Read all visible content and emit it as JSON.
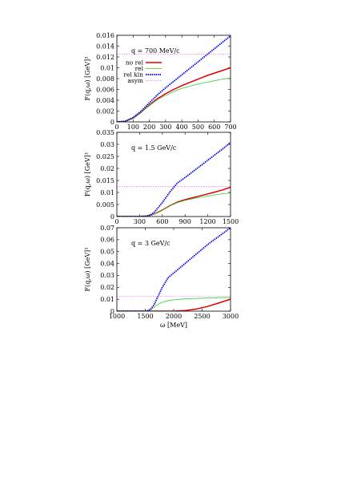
{
  "figure": {
    "xlabel": "ω [MeV]",
    "ylabel": "F(q,ω) [GeV]³"
  },
  "legend": [
    {
      "key": "no_rel",
      "label": "no rel"
    },
    {
      "key": "rel",
      "label": "rel"
    },
    {
      "key": "rel_kin",
      "label": "rel kin"
    },
    {
      "key": "asym",
      "label": "asym"
    }
  ],
  "colors": {
    "no_rel": "#dd0000",
    "rel": "#33cc33",
    "rel_kin": "#0000ee",
    "asym": "#ff66ff"
  },
  "chart_data": [
    {
      "type": "line",
      "annotation": "q = 700 MeV/c",
      "xlim": [
        0,
        700
      ],
      "ylim": [
        0,
        0.016
      ],
      "xticks": [
        0,
        100,
        200,
        300,
        400,
        500,
        600,
        700
      ],
      "yticks": [
        0,
        0.002,
        0.004,
        0.006,
        0.008,
        0.01,
        0.012,
        0.014,
        0.016
      ],
      "xtick_labels": [
        "0",
        "100",
        "200",
        "300",
        "400",
        "500",
        "600",
        "700"
      ],
      "ytick_labels": [
        "0",
        "0.002",
        "0.004",
        "0.006",
        "0.008",
        "0.01",
        "0.012",
        "0.014",
        "0.016"
      ],
      "show_xlabel": false,
      "show_legend": true,
      "series": [
        {
          "key": "no_rel",
          "x": [
            0,
            50,
            100,
            150,
            200,
            250,
            300,
            350,
            400,
            450,
            500,
            550,
            600,
            650,
            700
          ],
          "y": [
            0,
            0.0001,
            0.0007,
            0.0018,
            0.0031,
            0.0043,
            0.0052,
            0.006,
            0.0067,
            0.0073,
            0.0079,
            0.0085,
            0.009,
            0.0095,
            0.01
          ]
        },
        {
          "key": "rel",
          "x": [
            0,
            50,
            100,
            150,
            200,
            250,
            300,
            350,
            400,
            450,
            500,
            550,
            600,
            650,
            700
          ],
          "y": [
            0,
            0.0001,
            0.0007,
            0.0018,
            0.003,
            0.0041,
            0.0049,
            0.0056,
            0.0062,
            0.0066,
            0.007,
            0.0073,
            0.0076,
            0.0079,
            0.0081
          ]
        },
        {
          "key": "rel_kin",
          "x": [
            0,
            50,
            100,
            150,
            200,
            250,
            300,
            350,
            400,
            450,
            500,
            550,
            600,
            650,
            700
          ],
          "y": [
            0,
            0.0001,
            0.0008,
            0.002,
            0.0035,
            0.005,
            0.0063,
            0.0075,
            0.0087,
            0.0099,
            0.0111,
            0.0123,
            0.0135,
            0.0147,
            0.0159
          ]
        },
        {
          "key": "asym",
          "x": [
            0,
            700
          ],
          "y": [
            0.0125,
            0.0125
          ]
        }
      ]
    },
    {
      "type": "line",
      "annotation": "q = 1.5 GeV/c",
      "xlim": [
        0,
        1500
      ],
      "ylim": [
        0,
        0.035
      ],
      "xticks": [
        0,
        300,
        600,
        900,
        1200,
        1500
      ],
      "yticks": [
        0,
        0.005,
        0.01,
        0.015,
        0.02,
        0.025,
        0.03,
        0.035
      ],
      "xtick_labels": [
        "0",
        "300",
        "600",
        "900",
        "1200",
        "1500"
      ],
      "ytick_labels": [
        "0",
        "0.005",
        "0.01",
        "0.015",
        "0.02",
        "0.025",
        "0.03",
        "0.035"
      ],
      "show_xlabel": false,
      "show_legend": false,
      "series": [
        {
          "key": "no_rel",
          "x": [
            0,
            300,
            400,
            450,
            500,
            600,
            700,
            800,
            900,
            1000,
            1100,
            1200,
            1300,
            1400,
            1500
          ],
          "y": [
            0,
            0,
            0.0002,
            0.0006,
            0.0012,
            0.0027,
            0.0045,
            0.006,
            0.007,
            0.0078,
            0.0086,
            0.0094,
            0.0102,
            0.0111,
            0.0122
          ]
        },
        {
          "key": "rel",
          "x": [
            0,
            300,
            400,
            450,
            500,
            600,
            700,
            800,
            900,
            1000,
            1100,
            1200,
            1300,
            1400,
            1500
          ],
          "y": [
            0,
            0,
            0.0002,
            0.0006,
            0.0012,
            0.0027,
            0.0044,
            0.0058,
            0.0067,
            0.0074,
            0.008,
            0.0085,
            0.009,
            0.0095,
            0.0098
          ]
        },
        {
          "key": "rel_kin",
          "x": [
            0,
            300,
            400,
            450,
            500,
            600,
            700,
            800,
            900,
            1000,
            1100,
            1200,
            1300,
            1400,
            1500
          ],
          "y": [
            0,
            0,
            0.0002,
            0.0008,
            0.002,
            0.0058,
            0.0102,
            0.014,
            0.0162,
            0.0186,
            0.021,
            0.0234,
            0.0258,
            0.0282,
            0.0308
          ]
        },
        {
          "key": "asym",
          "x": [
            0,
            1500
          ],
          "y": [
            0.0125,
            0.0125
          ]
        }
      ]
    },
    {
      "type": "line",
      "annotation": "q = 3 GeV/c",
      "xlim": [
        1000,
        3000
      ],
      "ylim": [
        0,
        0.07
      ],
      "xticks": [
        1000,
        1500,
        2000,
        2500,
        3000
      ],
      "yticks": [
        0,
        0.01,
        0.02,
        0.03,
        0.04,
        0.05,
        0.06,
        0.07
      ],
      "xtick_labels": [
        "1000",
        "1500",
        "2000",
        "2500",
        "3000"
      ],
      "ytick_labels": [
        "0",
        "0.01",
        "0.02",
        "0.03",
        "0.04",
        "0.05",
        "0.06",
        "0.07"
      ],
      "show_xlabel": true,
      "show_legend": false,
      "series": [
        {
          "key": "no_rel",
          "x": [
            1000,
            1500,
            2000,
            2200,
            2400,
            2600,
            2800,
            3000
          ],
          "y": [
            0,
            0,
            0,
            0.0005,
            0.0018,
            0.004,
            0.007,
            0.01
          ]
        },
        {
          "key": "rel",
          "x": [
            1000,
            1500,
            1550,
            1600,
            1650,
            1700,
            1800,
            1900,
            2000,
            2200,
            2400,
            2600,
            2800,
            3000
          ],
          "y": [
            0,
            0,
            0.0004,
            0.0014,
            0.003,
            0.005,
            0.0075,
            0.0088,
            0.0095,
            0.0103,
            0.0107,
            0.011,
            0.0113,
            0.0115
          ]
        },
        {
          "key": "rel_kin",
          "x": [
            1000,
            1500,
            1550,
            1600,
            1650,
            1700,
            1800,
            1900,
            2000,
            2200,
            2400,
            2600,
            2800,
            3000
          ],
          "y": [
            0,
            0,
            0.0005,
            0.002,
            0.005,
            0.01,
            0.02,
            0.028,
            0.032,
            0.04,
            0.048,
            0.056,
            0.063,
            0.07
          ]
        },
        {
          "key": "asym",
          "x": [
            1000,
            3000
          ],
          "y": [
            0.0125,
            0.0125
          ]
        }
      ]
    }
  ]
}
